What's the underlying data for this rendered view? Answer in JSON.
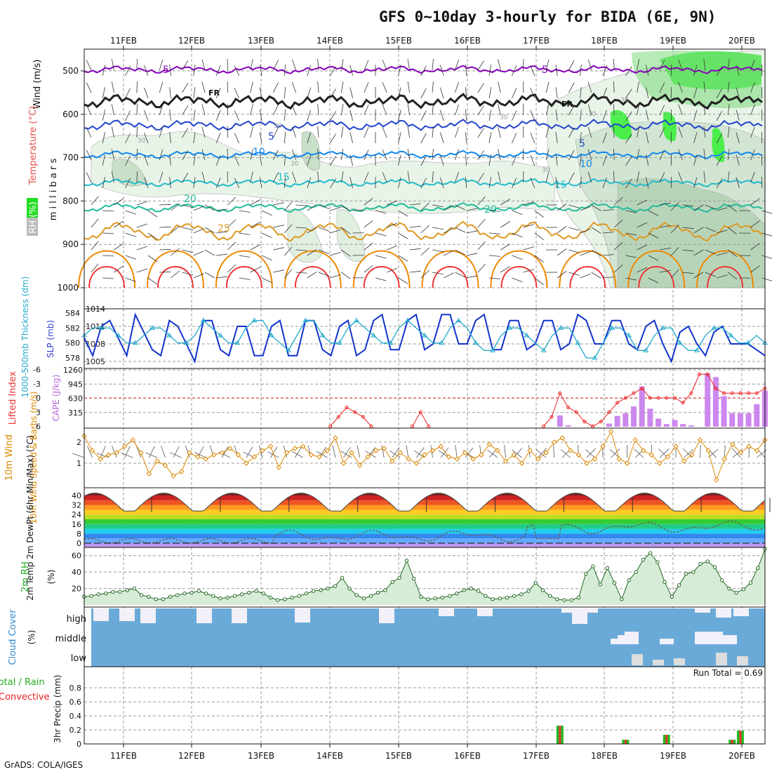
{
  "title": "GFS 0~10day 3-hourly for BIDA (6E, 9N)",
  "credit": "GrADS: COLA/IGES",
  "colors": {
    "wind_purple": "#8800bb",
    "temp_red": "#e0504a",
    "rh_green": "#22aa22",
    "cyan": "#22aacc",
    "orange": "#ee8800",
    "green": "#22aa22",
    "blue": "#1133cc",
    "cape_purple": "#cc88ee",
    "li_red": "#ee2222",
    "grid": "#999999",
    "cloud_blue": "#6aaad8"
  },
  "date_labels": [
    "11FEB",
    "12FEB",
    "13FEB",
    "14FEB",
    "15FEB",
    "16FEB",
    "17FEB",
    "18FEB",
    "19FEB",
    "20FEB"
  ],
  "chart_data": [
    {
      "type": "heatmap",
      "panel": "upper-air",
      "ylabel_wind": "Wind (m/s)",
      "ylabel_temp": "Temperature (°C)",
      "ylabel_rh": "RH (%)",
      "ylabel_pressure": "m i l l i b a r s",
      "y_ticks": [
        500,
        600,
        700,
        800,
        900,
        1000
      ],
      "ylim": [
        1000,
        450
      ],
      "isotherm_labels": [
        "5",
        "FR",
        "5",
        "10",
        "15",
        "20",
        "25",
        "5",
        "FR",
        "5",
        "10",
        "15",
        "20"
      ],
      "rh_contour_labels": [
        "30",
        "30",
        "30",
        "30",
        "30",
        "30",
        "30"
      ]
    },
    {
      "type": "line",
      "panel": "thickness-slp",
      "ylabel_left": "1000-500mb Thickness (dm)",
      "ylabel_right": "SLP (mb)",
      "left_ticks": [
        578,
        580,
        582,
        584
      ],
      "right_ticks": [
        1005,
        1008,
        1011,
        1014
      ],
      "series": [
        {
          "name": "SLP",
          "axis": "right",
          "values": [
            1009,
            1006,
            1011,
            1012,
            1009,
            1006,
            1013,
            1010,
            1007,
            1006,
            1012,
            1011,
            1008,
            1005,
            1012,
            1012,
            1007,
            1006,
            1011,
            1011,
            1006,
            1006,
            1011,
            1012,
            1006,
            1006,
            1012,
            1012,
            1007,
            1006,
            1011,
            1012,
            1006,
            1007,
            1012,
            1013,
            1007,
            1007,
            1012,
            1013,
            1007,
            1008,
            1013,
            1013,
            1008,
            1008,
            1012,
            1013,
            1007,
            1007,
            1012,
            1012,
            1007,
            1008,
            1012,
            1012,
            1007,
            1008,
            1013,
            1012,
            1008,
            1008,
            1012,
            1012,
            1008,
            1007,
            1011,
            1012,
            1008,
            1005,
            1010,
            1011,
            1008,
            1006,
            1010,
            1011,
            1008,
            1008,
            1008,
            1007,
            1006
          ]
        },
        {
          "name": "Thickness",
          "axis": "left",
          "values": [
            581,
            582,
            582,
            582,
            581,
            580,
            580,
            581,
            582,
            582,
            581,
            580,
            580,
            581,
            583,
            582,
            581,
            580,
            580,
            582,
            583,
            583,
            581,
            580,
            579,
            581,
            583,
            583,
            581,
            580,
            580,
            582,
            583,
            582,
            581,
            580,
            580,
            582,
            583,
            582,
            581,
            580,
            580,
            582,
            583,
            582,
            580,
            579,
            579,
            581,
            582,
            582,
            581,
            580,
            579,
            581,
            582,
            582,
            580,
            578,
            578,
            580,
            582,
            582,
            581,
            579,
            579,
            581,
            582,
            582,
            580,
            579,
            579,
            581,
            582,
            582,
            581,
            580,
            580,
            581,
            580
          ]
        }
      ]
    },
    {
      "type": "bar",
      "panel": "cape-li",
      "ylabel_left": "Lifted Index",
      "ylabel_right": "CAPE (J/kg)",
      "left_ticks": [
        -6,
        -3,
        0,
        3,
        6
      ],
      "right_ticks": [
        315,
        630,
        945,
        1260
      ],
      "cape_bars": [
        {
          "i": 58,
          "v": 250
        },
        {
          "i": 59,
          "v": 30
        },
        {
          "i": 64,
          "v": 70
        },
        {
          "i": 65,
          "v": 240
        },
        {
          "i": 66,
          "v": 300
        },
        {
          "i": 67,
          "v": 450
        },
        {
          "i": 68,
          "v": 890
        },
        {
          "i": 69,
          "v": 400
        },
        {
          "i": 70,
          "v": 180
        },
        {
          "i": 71,
          "v": 60
        },
        {
          "i": 72,
          "v": 150
        },
        {
          "i": 73,
          "v": 60
        },
        {
          "i": 74,
          "v": 30
        },
        {
          "i": 76,
          "v": 1180
        },
        {
          "i": 77,
          "v": 1100
        },
        {
          "i": 78,
          "v": 680
        },
        {
          "i": 79,
          "v": 300
        },
        {
          "i": 80,
          "v": 300
        },
        {
          "i": 81,
          "v": 300
        },
        {
          "i": 82,
          "v": 500
        },
        {
          "i": 83,
          "v": 800
        }
      ],
      "lifted_index": [
        {
          "i": 30,
          "v": 6
        },
        {
          "i": 31,
          "v": 4
        },
        {
          "i": 32,
          "v": 2
        },
        {
          "i": 33,
          "v": 3
        },
        {
          "i": 34,
          "v": 4
        },
        {
          "i": 35,
          "v": 6
        },
        {
          "i": 40,
          "v": 6
        },
        {
          "i": 41,
          "v": 3
        },
        {
          "i": 42,
          "v": 6
        },
        {
          "i": 56,
          "v": 6
        },
        {
          "i": 57,
          "v": 4
        },
        {
          "i": 58,
          "v": -1
        },
        {
          "i": 59,
          "v": 2
        },
        {
          "i": 60,
          "v": 3
        },
        {
          "i": 61,
          "v": 5
        },
        {
          "i": 62,
          "v": 6
        },
        {
          "i": 63,
          "v": 5
        },
        {
          "i": 64,
          "v": 3
        },
        {
          "i": 65,
          "v": 1
        },
        {
          "i": 66,
          "v": 0
        },
        {
          "i": 67,
          "v": -1
        },
        {
          "i": 68,
          "v": -2
        },
        {
          "i": 69,
          "v": 0
        },
        {
          "i": 70,
          "v": 0
        },
        {
          "i": 71,
          "v": 0
        },
        {
          "i": 72,
          "v": 0
        },
        {
          "i": 73,
          "v": 1
        },
        {
          "i": 74,
          "v": -1
        },
        {
          "i": 75,
          "v": -5
        },
        {
          "i": 76,
          "v": -5
        },
        {
          "i": 77,
          "v": -2
        },
        {
          "i": 78,
          "v": -1
        },
        {
          "i": 79,
          "v": -1
        },
        {
          "i": 80,
          "v": -1
        },
        {
          "i": 81,
          "v": -1
        },
        {
          "i": 82,
          "v": -1
        },
        {
          "i": 83,
          "v": -2
        }
      ]
    },
    {
      "type": "line",
      "panel": "wind10m",
      "ylabel": "10m Wind Speed & Barbs (m/s)",
      "y_ticks": [
        1,
        2
      ],
      "series": [
        {
          "name": "Speed",
          "values": [
            2.3,
            1.6,
            1.2,
            1.4,
            1.5,
            1.8,
            2.1,
            1.5,
            0.5,
            1.1,
            0.9,
            0.4,
            0.6,
            1.5,
            1.3,
            1.2,
            1.4,
            1.5,
            1.7,
            1.4,
            1.0,
            1.3,
            1.6,
            1.8,
            0.8,
            1.5,
            1.7,
            1.8,
            1.4,
            1.3,
            1.6,
            2.2,
            1.0,
            1.5,
            0.9,
            1.3,
            1.6,
            1.7,
            1.1,
            1.5,
            1.2,
            1.0,
            1.4,
            1.6,
            1.8,
            1.3,
            1.2,
            1.5,
            1.2,
            1.4,
            1.9,
            1.6,
            1.1,
            1.4,
            1.0,
            1.6,
            1.2,
            1.5,
            2.0,
            2.2,
            1.6,
            1.4,
            1.0,
            1.2,
            1.8,
            2.5,
            1.2,
            1.0,
            2.1,
            1.6,
            1.4,
            1.0,
            1.3,
            1.8,
            1.1,
            1.4,
            2.1,
            1.6,
            0.2,
            1.2,
            1.9,
            1.5,
            1.8,
            1.6,
            2.1
          ]
        }
      ]
    },
    {
      "type": "area",
      "panel": "temperature",
      "ylabel": "2m Temp 2m DewPt (6hr Min/Max) (°C)",
      "y_ticks": [
        0,
        8,
        16,
        24,
        32,
        40
      ],
      "days": 10
    },
    {
      "type": "area",
      "panel": "rh2m",
      "ylabel": "2m RH (%)",
      "y_ticks": [
        20,
        40,
        60
      ],
      "series": [
        {
          "name": "RH",
          "values": [
            10,
            11,
            13,
            14,
            16,
            16,
            18,
            20,
            12,
            10,
            7,
            7,
            10,
            12,
            14,
            15,
            17,
            14,
            11,
            8,
            9,
            11,
            13,
            15,
            17,
            14,
            9,
            6,
            7,
            9,
            11,
            14,
            17,
            18,
            20,
            23,
            33,
            20,
            12,
            8,
            11,
            15,
            18,
            28,
            33,
            54,
            32,
            10,
            7,
            8,
            9,
            11,
            14,
            18,
            20,
            17,
            11,
            7,
            8,
            9,
            11,
            13,
            17,
            27,
            18,
            11,
            7,
            6,
            6,
            9,
            38,
            47,
            25,
            45,
            27,
            7,
            30,
            40,
            55,
            63,
            52,
            28,
            10,
            24,
            38,
            40,
            50,
            53,
            46,
            30,
            20,
            15,
            19,
            27,
            45,
            68
          ]
        }
      ]
    },
    {
      "type": "bar",
      "panel": "cloud",
      "ylabel": "Cloud Cover (%)",
      "categories": [
        "high",
        "middle",
        "low"
      ]
    },
    {
      "type": "bar",
      "panel": "precip",
      "ylabel": "3hr Precip (mm)",
      "label_total": "Total / Rain",
      "label_conv": "Convective",
      "run_total": "Run Total = 0.69",
      "y_ticks": [
        0,
        0.2,
        0.4,
        0.6,
        0.8
      ],
      "ylim": [
        0,
        0.9
      ],
      "bars": [
        {
          "i": 58,
          "v": 0.26
        },
        {
          "i": 66,
          "v": 0.06
        },
        {
          "i": 71,
          "v": 0.13
        },
        {
          "i": 79,
          "v": 0.06
        },
        {
          "i": 80,
          "v": 0.19
        }
      ]
    }
  ]
}
